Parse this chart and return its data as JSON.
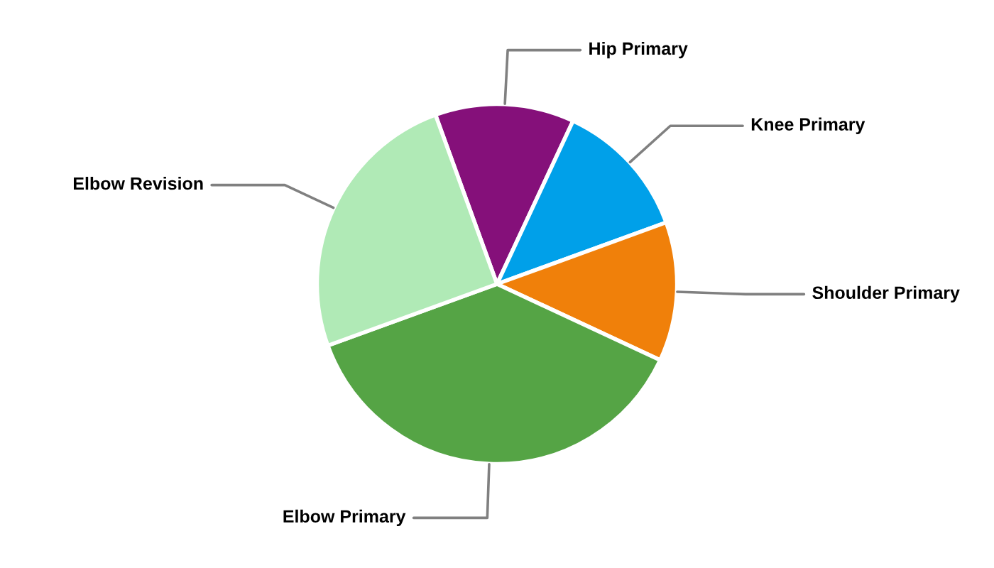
{
  "chart_data": {
    "type": "pie",
    "categories": [
      "Hip Primary",
      "Knee Primary",
      "Shoulder Primary",
      "Elbow Primary",
      "Elbow Revision"
    ],
    "values": [
      12.5,
      12.5,
      12.5,
      37.5,
      25
    ],
    "colors": [
      "#85107a",
      "#00a0e9",
      "#f0800a",
      "#55a445",
      "#b0eab6"
    ],
    "legend": false
  }
}
